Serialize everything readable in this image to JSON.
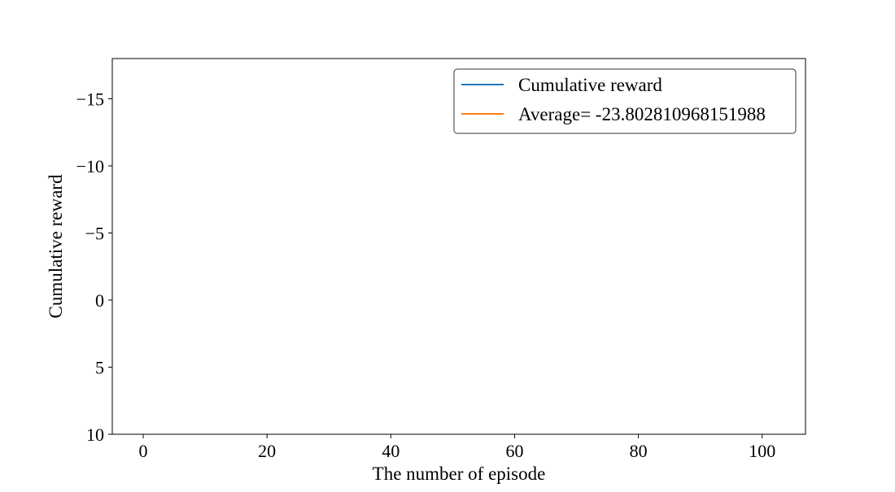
{
  "chart_data": {
    "type": "line",
    "title": "",
    "xlabel": "The number of episode",
    "ylabel": "Cumulative reward",
    "xlim": [
      -5,
      107
    ],
    "ylim": [
      10,
      -18
    ],
    "y_axis_inverted": true,
    "x_ticks": [
      0,
      20,
      40,
      60,
      80,
      100
    ],
    "x_tick_labels": [
      "0",
      "20",
      "40",
      "60",
      "80",
      "100"
    ],
    "y_ticks": [
      -15,
      -10,
      -5,
      0,
      5,
      10
    ],
    "y_tick_labels": [
      "−15",
      "−10",
      "−5",
      "0",
      "5",
      "10"
    ],
    "grid": false,
    "legend_position": "upper right",
    "series": [
      {
        "name": "Cumulative reward",
        "color": "#1f77b4",
        "x": [],
        "y": []
      },
      {
        "name": "Average= -23.802810968151988",
        "color": "#ff7f0e",
        "x": [],
        "y": []
      }
    ]
  }
}
